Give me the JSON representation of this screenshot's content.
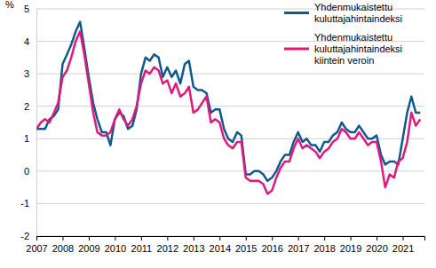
{
  "chart_data": {
    "type": "line",
    "ylabel": "%",
    "x": [
      2007.0,
      2007.17,
      2007.33,
      2007.5,
      2007.67,
      2007.83,
      2008.0,
      2008.17,
      2008.33,
      2008.5,
      2008.67,
      2008.83,
      2009.0,
      2009.17,
      2009.33,
      2009.5,
      2009.67,
      2009.83,
      2010.0,
      2010.17,
      2010.33,
      2010.5,
      2010.67,
      2010.83,
      2011.0,
      2011.17,
      2011.33,
      2011.5,
      2011.67,
      2011.83,
      2012.0,
      2012.17,
      2012.33,
      2012.5,
      2012.67,
      2012.83,
      2013.0,
      2013.17,
      2013.33,
      2013.5,
      2013.67,
      2013.83,
      2014.0,
      2014.17,
      2014.33,
      2014.5,
      2014.67,
      2014.83,
      2015.0,
      2015.17,
      2015.33,
      2015.5,
      2015.67,
      2015.83,
      2016.0,
      2016.17,
      2016.33,
      2016.5,
      2016.67,
      2016.83,
      2017.0,
      2017.17,
      2017.33,
      2017.5,
      2017.67,
      2017.83,
      2018.0,
      2018.17,
      2018.33,
      2018.5,
      2018.67,
      2018.83,
      2019.0,
      2019.17,
      2019.33,
      2019.5,
      2019.67,
      2019.83,
      2020.0,
      2020.17,
      2020.33,
      2020.5,
      2020.67,
      2020.83,
      2021.0,
      2021.17,
      2021.33,
      2021.5,
      2021.67
    ],
    "series": [
      {
        "name": "Yhdenmukaistettu kuluttajahintaindeksi",
        "color": "#0f5a8c",
        "values": [
          1.3,
          1.3,
          1.3,
          1.6,
          1.7,
          1.9,
          3.3,
          3.6,
          3.9,
          4.3,
          4.6,
          3.8,
          2.9,
          2.1,
          1.6,
          1.2,
          1.2,
          0.8,
          1.6,
          1.8,
          1.7,
          1.3,
          1.4,
          1.9,
          3.0,
          3.5,
          3.4,
          3.6,
          3.5,
          2.9,
          3.2,
          2.9,
          3.1,
          2.7,
          3.3,
          3.4,
          2.6,
          2.5,
          2.5,
          2.4,
          1.8,
          1.9,
          1.9,
          1.3,
          1.0,
          0.9,
          1.2,
          1.1,
          -0.1,
          -0.1,
          0.0,
          0.0,
          -0.1,
          -0.3,
          -0.2,
          0.0,
          0.3,
          0.5,
          0.5,
          0.9,
          1.2,
          0.9,
          1.0,
          0.8,
          0.8,
          0.6,
          0.9,
          0.9,
          1.1,
          1.2,
          1.5,
          1.3,
          1.2,
          1.2,
          1.4,
          1.2,
          1.0,
          1.0,
          1.1,
          0.5,
          0.2,
          0.3,
          0.3,
          0.2,
          1.0,
          1.8,
          2.3,
          1.8,
          1.8
        ]
      },
      {
        "name": "Yhdenmukaistettu kuluttajahintaindeksi kiintein veroin",
        "color": "#e0197d",
        "values": [
          1.3,
          1.5,
          1.6,
          1.5,
          1.8,
          2.1,
          2.9,
          3.1,
          3.5,
          4.0,
          4.3,
          3.6,
          2.7,
          1.8,
          1.2,
          1.1,
          1.1,
          1.2,
          1.6,
          1.9,
          1.6,
          1.4,
          1.6,
          2.0,
          2.7,
          3.1,
          3.0,
          3.2,
          3.1,
          2.7,
          2.8,
          2.4,
          2.7,
          2.3,
          2.4,
          2.6,
          1.8,
          1.9,
          2.1,
          2.3,
          1.5,
          1.6,
          1.5,
          1.0,
          0.8,
          0.7,
          0.9,
          0.9,
          -0.2,
          -0.3,
          -0.3,
          -0.3,
          -0.4,
          -0.7,
          -0.6,
          -0.2,
          0.1,
          0.3,
          0.3,
          0.7,
          1.0,
          0.7,
          0.8,
          0.7,
          0.6,
          0.4,
          0.6,
          0.7,
          0.9,
          1.0,
          1.3,
          1.2,
          1.0,
          1.0,
          1.2,
          1.0,
          0.8,
          0.9,
          0.9,
          0.3,
          -0.5,
          -0.1,
          -0.2,
          0.3,
          0.4,
          0.9,
          1.8,
          1.4,
          1.6
        ]
      }
    ],
    "xlim": [
      2007,
      2021.83
    ],
    "xticks": [
      2007,
      2008,
      2009,
      2010,
      2011,
      2012,
      2013,
      2014,
      2015,
      2016,
      2017,
      2018,
      2019,
      2020,
      2021
    ],
    "ylim": [
      -2,
      5
    ],
    "yticks": [
      -2,
      -1,
      0,
      1,
      2,
      3,
      4,
      5
    ],
    "grid": true,
    "legend": "top-right"
  }
}
